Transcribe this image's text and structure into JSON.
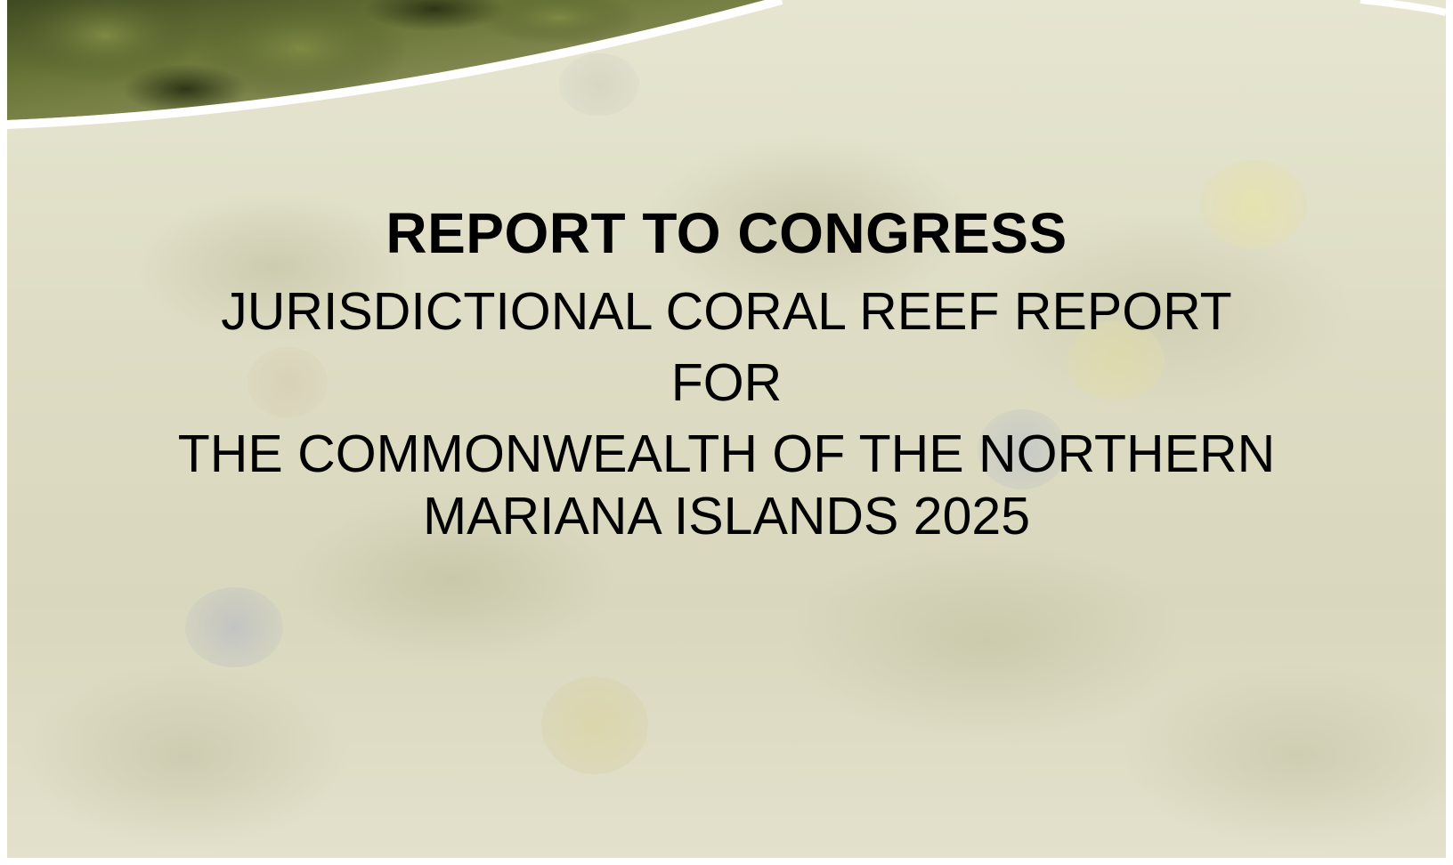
{
  "cover": {
    "heading": "REPORT TO CONGRESS",
    "subtitle_line1": "JURISDICTIONAL CORAL REEF REPORT",
    "subtitle_line2": "FOR",
    "subtitle_line3": "THE COMMONWEALTH OF THE NORTHERN",
    "subtitle_line4": "MARIANA ISLANDS 2025"
  },
  "colors": {
    "background_tint": "#dedcc4",
    "photo_green": "#5d6a32",
    "text": "#000000",
    "divider": "#ffffff"
  }
}
